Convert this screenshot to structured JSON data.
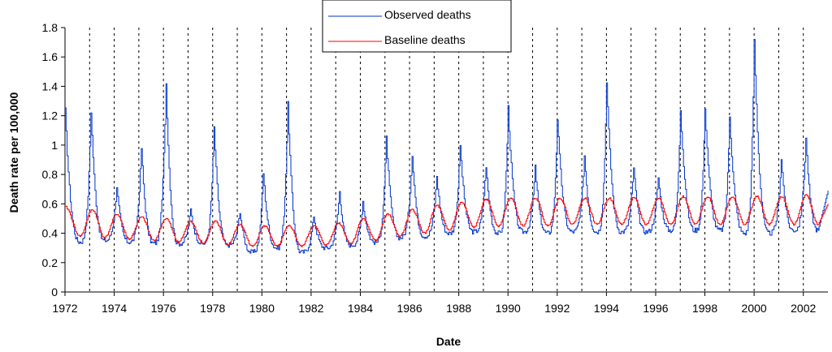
{
  "chart_data": {
    "type": "line",
    "title": "",
    "xlabel": "Date",
    "ylabel": "Death rate per 100,000",
    "xlim": [
      1972,
      2003
    ],
    "ylim": [
      0,
      1.8
    ],
    "y_ticks": [
      0,
      0.2,
      0.4,
      0.6,
      0.8,
      1,
      1.2,
      1.4,
      1.6,
      1.8
    ],
    "y_tick_labels": [
      "0",
      "0.2",
      "0.4",
      "0.6",
      "0.8",
      "1",
      "1.2",
      "1.4",
      "1.6",
      "1.8"
    ],
    "x_ticks": [
      1972,
      1974,
      1976,
      1978,
      1980,
      1982,
      1984,
      1986,
      1988,
      1990,
      1992,
      1994,
      1996,
      1998,
      2000,
      2002
    ],
    "x_tick_labels": [
      "1972",
      "1974",
      "1976",
      "1978",
      "1980",
      "1982",
      "1984",
      "1986",
      "1988",
      "1990",
      "1992",
      "1994",
      "1996",
      "1998",
      "2000",
      "2002"
    ],
    "vertical_gridlines": [
      1972,
      1973,
      1974,
      1975,
      1976,
      1977,
      1978,
      1979,
      1980,
      1981,
      1982,
      1983,
      1984,
      1985,
      1986,
      1987,
      1988,
      1989,
      1990,
      1991,
      1992,
      1993,
      1994,
      1995,
      1996,
      1997,
      1998,
      1999,
      2000,
      2001,
      2002
    ],
    "vertical_gridline_style": "dotted",
    "legend_position": "top-center",
    "series": [
      {
        "name": "Observed deaths",
        "color": "#0033cc",
        "annual_peaks": [
          {
            "x": 1972.0,
            "y": 1.24
          },
          {
            "x": 1973.05,
            "y": 1.23
          },
          {
            "x": 1974.1,
            "y": 0.72
          },
          {
            "x": 1975.1,
            "y": 0.98
          },
          {
            "x": 1976.1,
            "y": 1.42
          },
          {
            "x": 1977.1,
            "y": 0.56
          },
          {
            "x": 1978.05,
            "y": 1.12
          },
          {
            "x": 1979.1,
            "y": 0.55
          },
          {
            "x": 1980.05,
            "y": 0.81
          },
          {
            "x": 1981.05,
            "y": 1.28
          },
          {
            "x": 1982.1,
            "y": 0.52
          },
          {
            "x": 1983.15,
            "y": 0.69
          },
          {
            "x": 1984.1,
            "y": 0.62
          },
          {
            "x": 1985.05,
            "y": 1.05
          },
          {
            "x": 1986.1,
            "y": 0.94
          },
          {
            "x": 1987.1,
            "y": 0.79
          },
          {
            "x": 1988.05,
            "y": 1.0
          },
          {
            "x": 1989.1,
            "y": 0.86
          },
          {
            "x": 1990.0,
            "y": 1.26
          },
          {
            "x": 1991.1,
            "y": 0.85
          },
          {
            "x": 1992.0,
            "y": 1.18
          },
          {
            "x": 1993.1,
            "y": 0.93
          },
          {
            "x": 1994.0,
            "y": 1.44
          },
          {
            "x": 1995.1,
            "y": 0.85
          },
          {
            "x": 1996.1,
            "y": 0.78
          },
          {
            "x": 1997.0,
            "y": 1.25
          },
          {
            "x": 1998.0,
            "y": 1.26
          },
          {
            "x": 1999.0,
            "y": 1.2
          },
          {
            "x": 2000.0,
            "y": 1.71
          },
          {
            "x": 2001.1,
            "y": 0.91
          },
          {
            "x": 2002.1,
            "y": 1.05
          }
        ],
        "annual_troughs": [
          {
            "x": 1972.6,
            "y": 0.34
          },
          {
            "x": 1973.6,
            "y": 0.35
          },
          {
            "x": 1974.6,
            "y": 0.34
          },
          {
            "x": 1975.6,
            "y": 0.33
          },
          {
            "x": 1976.6,
            "y": 0.33
          },
          {
            "x": 1977.6,
            "y": 0.33
          },
          {
            "x": 1978.6,
            "y": 0.32
          },
          {
            "x": 1979.6,
            "y": 0.27
          },
          {
            "x": 1980.6,
            "y": 0.3
          },
          {
            "x": 1981.6,
            "y": 0.27
          },
          {
            "x": 1982.6,
            "y": 0.3
          },
          {
            "x": 1983.6,
            "y": 0.32
          },
          {
            "x": 1984.6,
            "y": 0.34
          },
          {
            "x": 1985.6,
            "y": 0.37
          },
          {
            "x": 1986.6,
            "y": 0.38
          },
          {
            "x": 1987.6,
            "y": 0.4
          },
          {
            "x": 1988.6,
            "y": 0.41
          },
          {
            "x": 1989.6,
            "y": 0.4
          },
          {
            "x": 1990.6,
            "y": 0.41
          },
          {
            "x": 1991.6,
            "y": 0.4
          },
          {
            "x": 1992.6,
            "y": 0.41
          },
          {
            "x": 1993.6,
            "y": 0.41
          },
          {
            "x": 1994.6,
            "y": 0.41
          },
          {
            "x": 1995.6,
            "y": 0.41
          },
          {
            "x": 1996.6,
            "y": 0.42
          },
          {
            "x": 1997.6,
            "y": 0.42
          },
          {
            "x": 1998.6,
            "y": 0.42
          },
          {
            "x": 1999.6,
            "y": 0.4
          },
          {
            "x": 2000.6,
            "y": 0.4
          },
          {
            "x": 2001.6,
            "y": 0.42
          },
          {
            "x": 2002.6,
            "y": 0.42
          }
        ]
      },
      {
        "name": "Baseline deaths",
        "color": "#ff0000",
        "annual_peaks": [
          {
            "x": 1972.0,
            "y": 0.58
          },
          {
            "x": 1973.1,
            "y": 0.56
          },
          {
            "x": 1974.1,
            "y": 0.53
          },
          {
            "x": 1975.1,
            "y": 0.51
          },
          {
            "x": 1976.1,
            "y": 0.5
          },
          {
            "x": 1977.1,
            "y": 0.48
          },
          {
            "x": 1978.1,
            "y": 0.48
          },
          {
            "x": 1979.1,
            "y": 0.46
          },
          {
            "x": 1980.1,
            "y": 0.45
          },
          {
            "x": 1981.1,
            "y": 0.45
          },
          {
            "x": 1982.1,
            "y": 0.45
          },
          {
            "x": 1983.1,
            "y": 0.47
          },
          {
            "x": 1984.1,
            "y": 0.5
          },
          {
            "x": 1985.1,
            "y": 0.53
          },
          {
            "x": 1986.1,
            "y": 0.56
          },
          {
            "x": 1987.1,
            "y": 0.59
          },
          {
            "x": 1988.1,
            "y": 0.61
          },
          {
            "x": 1989.1,
            "y": 0.63
          },
          {
            "x": 1990.1,
            "y": 0.64
          },
          {
            "x": 1991.1,
            "y": 0.64
          },
          {
            "x": 1992.1,
            "y": 0.64
          },
          {
            "x": 1993.1,
            "y": 0.64
          },
          {
            "x": 1994.1,
            "y": 0.64
          },
          {
            "x": 1995.1,
            "y": 0.64
          },
          {
            "x": 1996.1,
            "y": 0.64
          },
          {
            "x": 1997.1,
            "y": 0.65
          },
          {
            "x": 1998.1,
            "y": 0.65
          },
          {
            "x": 1999.1,
            "y": 0.65
          },
          {
            "x": 2000.1,
            "y": 0.65
          },
          {
            "x": 2001.1,
            "y": 0.65
          },
          {
            "x": 2002.1,
            "y": 0.66
          }
        ],
        "annual_troughs": [
          {
            "x": 1972.6,
            "y": 0.38
          },
          {
            "x": 1973.6,
            "y": 0.37
          },
          {
            "x": 1974.6,
            "y": 0.36
          },
          {
            "x": 1975.6,
            "y": 0.35
          },
          {
            "x": 1976.6,
            "y": 0.34
          },
          {
            "x": 1977.6,
            "y": 0.33
          },
          {
            "x": 1978.6,
            "y": 0.32
          },
          {
            "x": 1979.6,
            "y": 0.31
          },
          {
            "x": 1980.6,
            "y": 0.31
          },
          {
            "x": 1981.6,
            "y": 0.31
          },
          {
            "x": 1982.6,
            "y": 0.32
          },
          {
            "x": 1983.6,
            "y": 0.33
          },
          {
            "x": 1984.6,
            "y": 0.35
          },
          {
            "x": 1985.6,
            "y": 0.38
          },
          {
            "x": 1986.6,
            "y": 0.4
          },
          {
            "x": 1987.6,
            "y": 0.42
          },
          {
            "x": 1988.6,
            "y": 0.44
          },
          {
            "x": 1989.6,
            "y": 0.45
          },
          {
            "x": 1990.6,
            "y": 0.45
          },
          {
            "x": 1991.6,
            "y": 0.45
          },
          {
            "x": 1992.6,
            "y": 0.46
          },
          {
            "x": 1993.6,
            "y": 0.46
          },
          {
            "x": 1994.6,
            "y": 0.46
          },
          {
            "x": 1995.6,
            "y": 0.46
          },
          {
            "x": 1996.6,
            "y": 0.46
          },
          {
            "x": 1997.6,
            "y": 0.46
          },
          {
            "x": 1998.6,
            "y": 0.46
          },
          {
            "x": 1999.6,
            "y": 0.46
          },
          {
            "x": 2000.6,
            "y": 0.46
          },
          {
            "x": 2001.6,
            "y": 0.46
          },
          {
            "x": 2002.6,
            "y": 0.46
          }
        ]
      }
    ]
  }
}
